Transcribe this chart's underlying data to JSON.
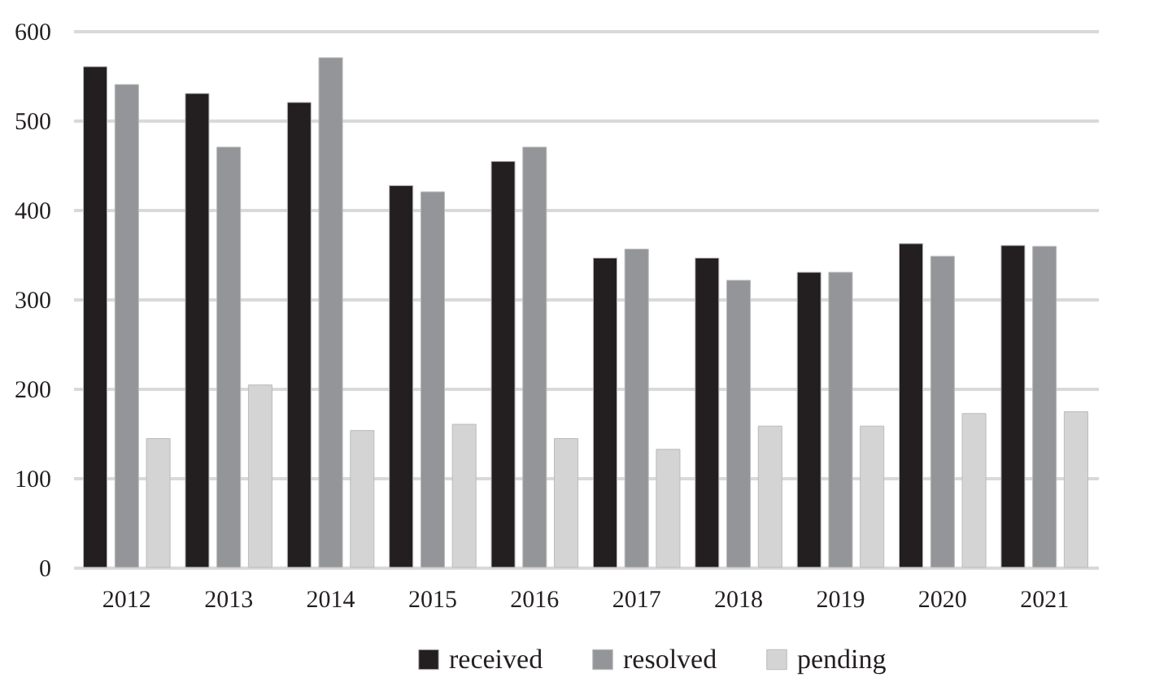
{
  "chart_data": {
    "type": "bar",
    "categories": [
      "2012",
      "2013",
      "2014",
      "2015",
      "2016",
      "2017",
      "2018",
      "2019",
      "2020",
      "2021"
    ],
    "series": [
      {
        "name": "received",
        "color": "#231f20",
        "values": [
          560,
          530,
          520,
          427,
          454,
          346,
          346,
          330,
          362,
          360
        ]
      },
      {
        "name": "resolved",
        "color": "#939598",
        "values": [
          540,
          470,
          570,
          420,
          470,
          356,
          321,
          330,
          348,
          359
        ]
      },
      {
        "name": "pending",
        "color": "#d4d4d4",
        "values": [
          144,
          204,
          153,
          160,
          144,
          132,
          158,
          158,
          172,
          174
        ]
      }
    ],
    "ylim": [
      0,
      600
    ],
    "yticks": [
      0,
      100,
      200,
      300,
      400,
      500,
      600
    ],
    "grid": "y",
    "legend": "bottom"
  }
}
